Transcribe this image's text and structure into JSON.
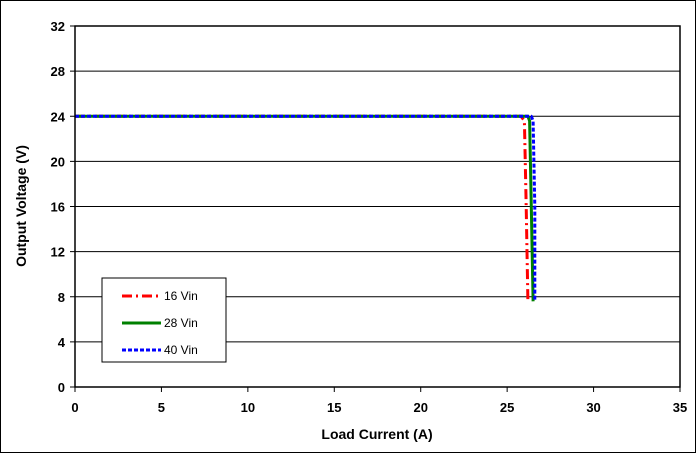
{
  "chart_data": {
    "type": "line",
    "title": "",
    "xlabel": "Load Current (A)",
    "ylabel": "Output Voltage (V)",
    "xlim": [
      0,
      35
    ],
    "ylim": [
      0,
      32
    ],
    "xticks": [
      0,
      5,
      10,
      15,
      20,
      25,
      30,
      35
    ],
    "yticks": [
      0,
      4,
      8,
      12,
      16,
      20,
      24,
      28,
      32
    ],
    "grid": "horizontal",
    "legend_position": "bottom-left",
    "series": [
      {
        "name": "16 Vin",
        "color": "#ff0000",
        "style": "dash-dot",
        "x": [
          0,
          25.8,
          26.0,
          26.1,
          26.2
        ],
        "y": [
          24,
          24,
          23.6,
          16,
          7.6
        ]
      },
      {
        "name": "28 Vin",
        "color": "#008000",
        "style": "solid",
        "x": [
          0,
          26.2,
          26.3,
          26.4,
          26.5
        ],
        "y": [
          24,
          24,
          23.6,
          16,
          7.6
        ]
      },
      {
        "name": "40 Vin",
        "color": "#0000ff",
        "style": "dotted",
        "x": [
          0,
          26.4,
          26.5,
          26.6,
          26.6
        ],
        "y": [
          24,
          24,
          23.6,
          16,
          7.6
        ]
      }
    ]
  }
}
